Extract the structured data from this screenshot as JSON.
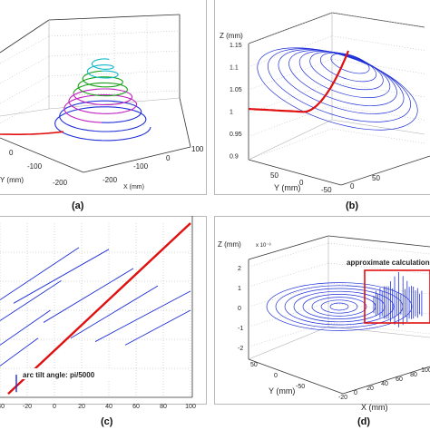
{
  "colors": {
    "red": "#e01010",
    "blue": "#1f2fd8",
    "green": "#1aa01a",
    "cyan": "#10b8c8",
    "magenta": "#c020c0",
    "axis": "#333333",
    "grid": "#b0b0b0"
  },
  "chart_data": [
    {
      "panel": "(a)",
      "type": "line",
      "subtype": "3d-spiral",
      "caption": "(a)",
      "xlabel": "X (mm)",
      "ylabel": "Y (mm)",
      "x_ticks": [
        "100",
        "0",
        "-100",
        "-200"
      ],
      "y_ticks": [
        "0",
        "-100",
        "-200"
      ],
      "series": [
        {
          "color_name": "red",
          "coils": 1
        },
        {
          "color_name": "blue",
          "coils": 2
        },
        {
          "color_name": "magenta",
          "coils": 2
        },
        {
          "color_name": "green",
          "coils": 2
        },
        {
          "color_name": "cyan",
          "coils": 2
        }
      ]
    },
    {
      "panel": "(b)",
      "type": "line",
      "subtype": "3d-spiral",
      "caption": "(b)",
      "zlabel": "Z (mm)",
      "ylabel": "Y (mm)",
      "z_ticks": [
        "1.15",
        "1.1",
        "1.05",
        "1",
        "0.95",
        "0.9"
      ],
      "y_ticks": [
        "50",
        "0",
        "-50"
      ],
      "x_ticks": [
        "50",
        "0"
      ],
      "zlim": [
        0.9,
        1.15
      ]
    },
    {
      "panel": "(c)",
      "type": "line",
      "caption": "(c)",
      "x_ticks": [
        "-40",
        "-20",
        "0",
        "20",
        "40",
        "60",
        "80",
        "100"
      ],
      "xlim": [
        -40,
        100
      ],
      "annotation": "arc tilt angle: pi/5000",
      "red_line": {
        "x": [
          -34,
          100
        ],
        "y": [
          0.02,
          1.0
        ]
      },
      "blue_segments": [
        {
          "x": [
            -40,
            -12
          ],
          "y": [
            0.18,
            0.34
          ]
        },
        {
          "x": [
            -40,
            -3
          ],
          "y": [
            0.3,
            0.5
          ]
        },
        {
          "x": [
            -40,
            5
          ],
          "y": [
            0.44,
            0.67
          ]
        },
        {
          "x": [
            -40,
            18
          ],
          "y": [
            0.56,
            0.86
          ]
        },
        {
          "x": [
            -30,
            40
          ],
          "y": [
            0.54,
            0.85
          ]
        },
        {
          "x": [
            -8,
            58
          ],
          "y": [
            0.43,
            0.74
          ]
        },
        {
          "x": [
            12,
            76
          ],
          "y": [
            0.34,
            0.64
          ]
        },
        {
          "x": [
            30,
            100
          ],
          "y": [
            0.32,
            0.61
          ]
        },
        {
          "x": [
            52,
            100
          ],
          "y": [
            0.3,
            0.5
          ]
        }
      ]
    },
    {
      "panel": "(d)",
      "type": "line",
      "subtype": "3d-spiral",
      "caption": "(d)",
      "zlabel": "Z (mm)",
      "z_exponent": "x 10⁻³",
      "z_ticks": [
        "2",
        "1",
        "0",
        "-1",
        "-2"
      ],
      "zlim": [
        -2,
        2
      ],
      "ylabel": "Y (mm)",
      "y_ticks": [
        "50",
        "0",
        "-50"
      ],
      "xlabel": "X (mm)",
      "x_ticks": [
        "-20",
        "0",
        "20",
        "40",
        "60",
        "80",
        "100"
      ],
      "annotation": "approximate calculation"
    }
  ]
}
